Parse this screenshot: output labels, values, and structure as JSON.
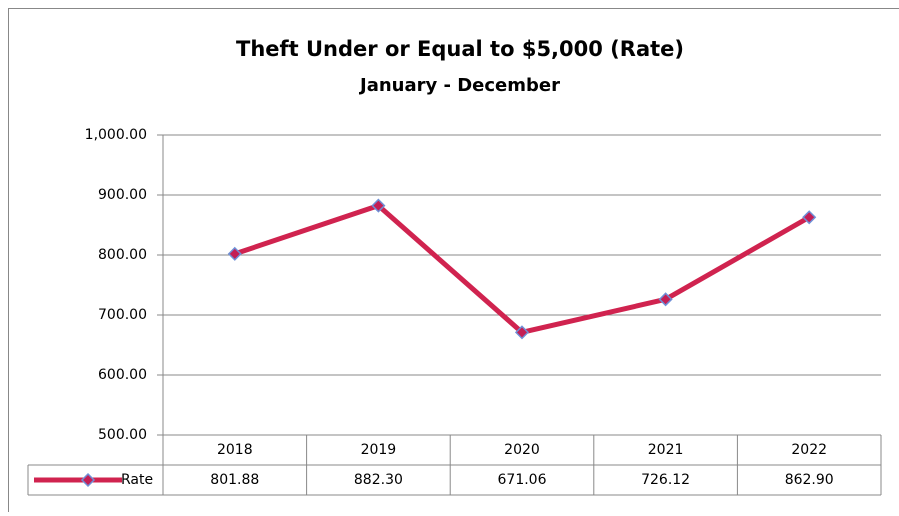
{
  "chart_data": {
    "type": "line",
    "title": "Theft Under or Equal to $5,000 (Rate)",
    "subtitle": "January - December",
    "categories": [
      "2018",
      "2019",
      "2020",
      "2021",
      "2022"
    ],
    "series": [
      {
        "name": "Rate",
        "color": "#d0234f",
        "marker_color": "#c41f55",
        "marker_edge": "#6f8fd6",
        "values": [
          801.88,
          882.3,
          671.06,
          726.12,
          862.9
        ],
        "value_labels": [
          "801.88",
          "882.30",
          "671.06",
          "726.12",
          "862.90"
        ]
      }
    ],
    "ylim": [
      500,
      1000
    ],
    "yticks": [
      {
        "value": 500,
        "label": "500.00"
      },
      {
        "value": 600,
        "label": "600.00"
      },
      {
        "value": 700,
        "label": "700.00"
      },
      {
        "value": 800,
        "label": "800.00"
      },
      {
        "value": 900,
        "label": "900.00"
      },
      {
        "value": 1000,
        "label": "1,000.00"
      }
    ],
    "grid": true,
    "data_table": true
  }
}
